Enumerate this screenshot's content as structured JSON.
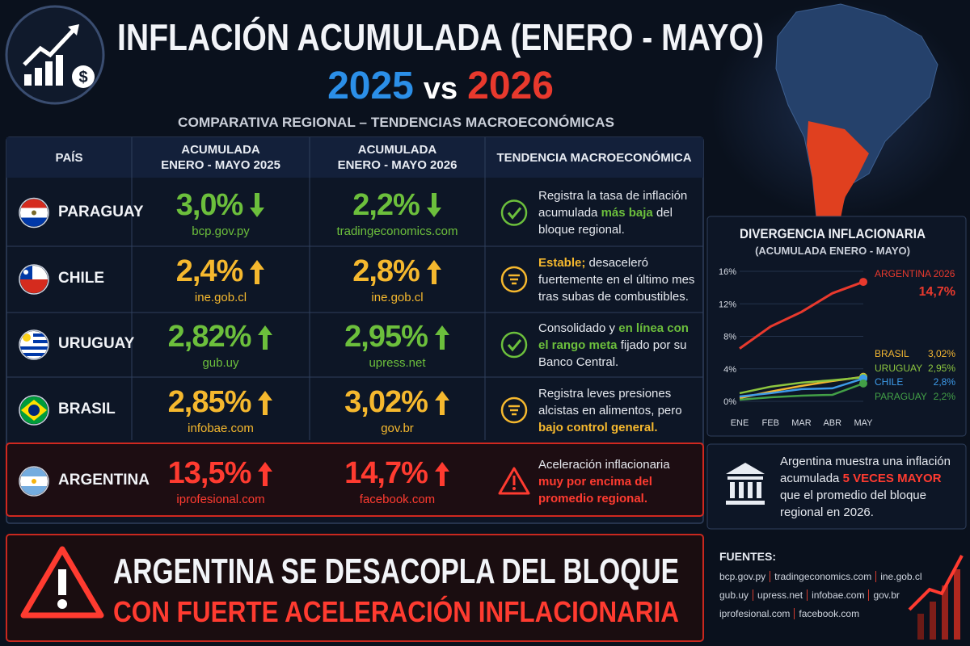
{
  "header": {
    "title": "INFLACIÓN ACUMULADA (ENERO - MAYO)",
    "year_a": "2025",
    "vs": "vs",
    "year_b": "2026",
    "subtitle": "COMPARATIVA REGIONAL – TENDENCIAS MACROECONÓMICAS"
  },
  "table": {
    "columns": [
      "PAÍS",
      "ACUMULADA\nENERO - MAYO 2025",
      "ACUMULADA\nENERO - MAYO 2026",
      "TENDENCIA MACROECONÓMICA"
    ],
    "rows": [
      {
        "country": "PARAGUAY",
        "v2025": "3,0%",
        "src2025": "bcp.gov.py",
        "dir2025": "down",
        "v2026": "2,2%",
        "src2026": "tradingeconomics.com",
        "dir2026": "down",
        "color": "#6cbf3c",
        "status": "ok",
        "trend": [
          {
            "text": "Registra la tasa de inflación acumulada "
          },
          {
            "text": "más baja",
            "em": "#6cbf3c"
          },
          {
            "text": " del bloque regional."
          }
        ]
      },
      {
        "country": "CHILE",
        "v2025": "2,4%",
        "src2025": "ine.gob.cl",
        "dir2025": "up",
        "v2026": "2,8%",
        "src2026": "ine.gob.cl",
        "dir2026": "up",
        "color": "#f5b82e",
        "status": "stable",
        "trend": [
          {
            "text": "Estable;",
            "em": "#f5b82e"
          },
          {
            "text": " desaceleró fuertemente en el último mes tras subas de combustibles."
          }
        ]
      },
      {
        "country": "URUGUAY",
        "v2025": "2,82%",
        "src2025": "gub.uy",
        "dir2025": "up",
        "v2026": "2,95%",
        "src2026": "upress.net",
        "dir2026": "up",
        "color": "#6cbf3c",
        "status": "ok",
        "trend": [
          {
            "text": "Consolidado y "
          },
          {
            "text": "en línea con el rango meta",
            "em": "#6cbf3c"
          },
          {
            "text": " fijado por su Banco Central."
          }
        ]
      },
      {
        "country": "BRASIL",
        "v2025": "2,85%",
        "src2025": "infobae.com",
        "dir2025": "up",
        "v2026": "3,02%",
        "src2026": "gov.br",
        "dir2026": "up",
        "color": "#f5b82e",
        "status": "stable",
        "trend": [
          {
            "text": "Registra leves presiones alcistas en alimentos, pero "
          },
          {
            "text": "bajo control general.",
            "em": "#f5b82e"
          }
        ]
      },
      {
        "country": "ARGENTINA",
        "v2025": "13,5%",
        "src2025": "iprofesional.com",
        "dir2025": "up",
        "v2026": "14,7%",
        "src2026": "facebook.com",
        "dir2026": "up",
        "color": "#ff3b30",
        "status": "alert",
        "highlight": true,
        "trend": [
          {
            "text": "Aceleración inflacionaria "
          },
          {
            "text": "muy por encima del promedio regional.",
            "em": "#ff3b30"
          }
        ]
      }
    ]
  },
  "chart_data": {
    "type": "line",
    "title": "DIVERGENCIA INFLACIONARIA",
    "subtitle": "(ACUMULADA ENERO - MAYO)",
    "categories": [
      "ENE",
      "FEB",
      "MAR",
      "ABR",
      "MAY"
    ],
    "ylim": [
      0,
      16
    ],
    "yticks": [
      {
        "value": 0,
        "label": "0%"
      },
      {
        "value": 4,
        "label": "4%"
      },
      {
        "value": 8,
        "label": "8%"
      },
      {
        "value": 12,
        "label": "12%"
      },
      {
        "value": 16,
        "label": "16%"
      }
    ],
    "grid": true,
    "series": [
      {
        "name": "ARGENTINA 2026",
        "color": "#e8392d",
        "values": [
          6.5,
          9.2,
          11.0,
          13.3,
          14.7
        ],
        "value_labels": [
          null,
          null,
          null,
          null,
          "14,7%"
        ]
      },
      {
        "name": "BRASIL",
        "color": "#f2b632",
        "values": [
          0.4,
          1.2,
          1.9,
          2.5,
          3.02
        ],
        "value_labels": [
          null,
          null,
          null,
          null,
          "3,02%"
        ]
      },
      {
        "name": "URUGUAY",
        "color": "#8cc63f",
        "values": [
          1.0,
          1.8,
          2.3,
          2.6,
          2.95
        ],
        "value_labels": [
          null,
          null,
          null,
          null,
          "2,95%"
        ]
      },
      {
        "name": "CHILE",
        "color": "#3d9be9",
        "values": [
          0.6,
          1.0,
          1.5,
          1.6,
          2.8
        ],
        "value_labels": [
          null,
          null,
          null,
          null,
          "2,8%"
        ]
      },
      {
        "name": "PARAGUAY",
        "color": "#43a047",
        "values": [
          0.2,
          0.5,
          0.7,
          0.8,
          2.2
        ],
        "value_labels": [
          null,
          null,
          null,
          null,
          "2,2%"
        ]
      }
    ]
  },
  "note": {
    "parts": [
      {
        "text": "Argentina muestra una inflación acumulada "
      },
      {
        "text": "5 VECES MAYOR",
        "em": "#ff3b30"
      },
      {
        "text": " que el promedio del bloque regional en 2026."
      }
    ]
  },
  "banner": {
    "line1": "ARGENTINA SE DESACOPLA DEL BLOQUE",
    "line2": "CON FUERTE ACELERACIÓN INFLACIONARIA"
  },
  "sources": {
    "title": "FUENTES:",
    "lines": [
      [
        "bcp.gov.py",
        "tradingeconomics.com",
        "ine.gob.cl"
      ],
      [
        "gub.uy",
        "upress.net",
        "infobae.com",
        "gov.br"
      ],
      [
        "iprofesional.com",
        "facebook.com"
      ]
    ]
  }
}
